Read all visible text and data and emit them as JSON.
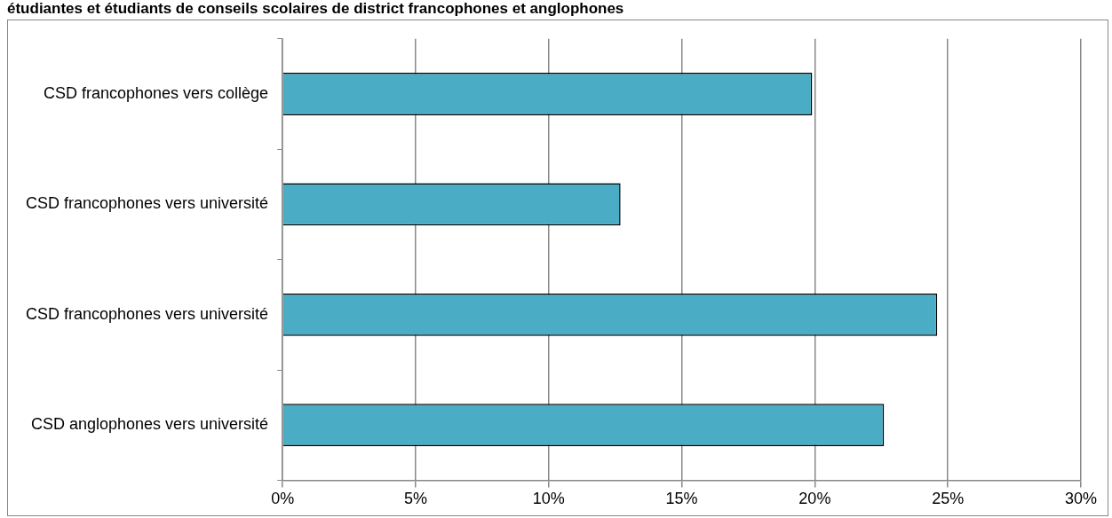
{
  "chart_data": {
    "type": "bar",
    "orientation": "horizontal",
    "title": "étudiantes et étudiants de conseils scolaires de district francophones et anglophones",
    "categories": [
      "CSD francophones vers collège",
      "CSD francophones vers université",
      "CSD francophones vers université",
      "CSD anglophones vers université"
    ],
    "values": [
      19.9,
      12.7,
      24.6,
      22.6
    ],
    "color": "#4bacc6",
    "xlim": [
      0,
      30
    ],
    "xticks": [
      {
        "value": 0,
        "label": "0%"
      },
      {
        "value": 5,
        "label": "5%"
      },
      {
        "value": 10,
        "label": "10%"
      },
      {
        "value": 15,
        "label": "15%"
      },
      {
        "value": 20,
        "label": "20%"
      },
      {
        "value": 25,
        "label": "25%"
      },
      {
        "value": 30,
        "label": "30%"
      }
    ],
    "grid": "x",
    "legend": false
  }
}
